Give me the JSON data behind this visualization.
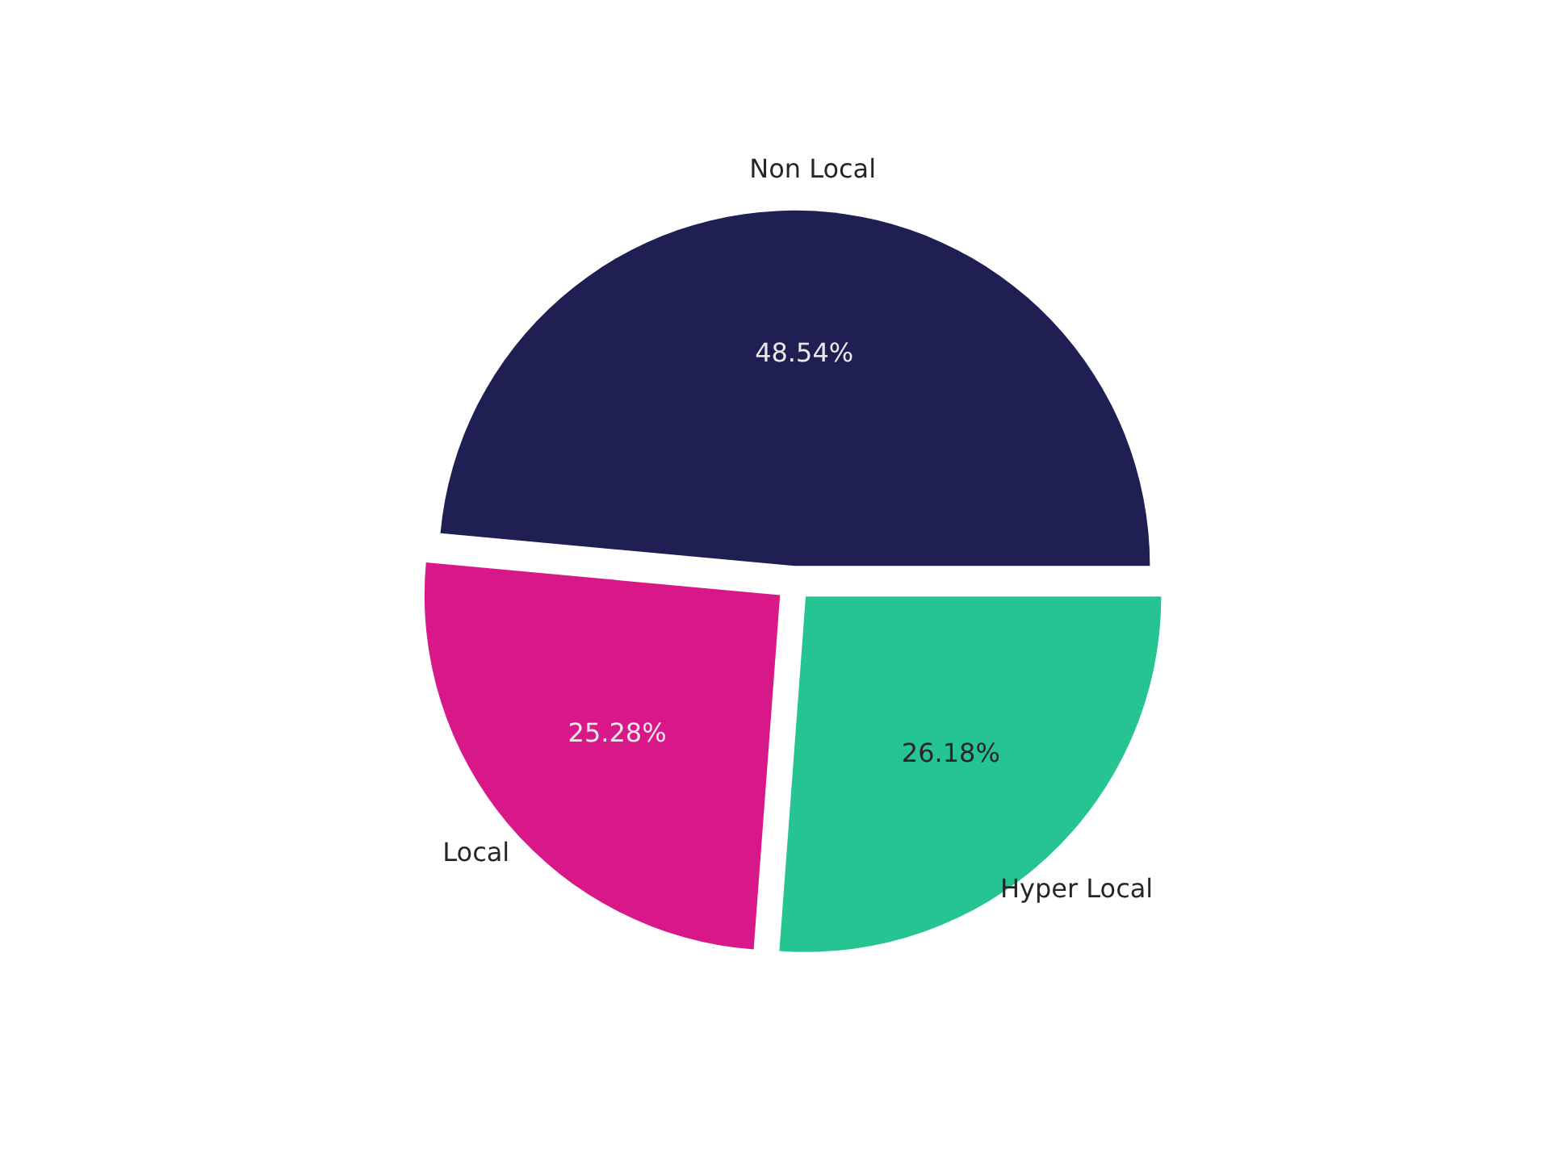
{
  "chart_data": {
    "type": "pie",
    "categories": [
      "Non Local",
      "Local",
      "Hyper Local"
    ],
    "values": [
      48.54,
      25.28,
      26.18
    ],
    "colors": [
      "#1f1f54",
      "#d81889",
      "#25c492"
    ],
    "value_labels": [
      "48.54%",
      "25.28%",
      "26.18%"
    ]
  }
}
